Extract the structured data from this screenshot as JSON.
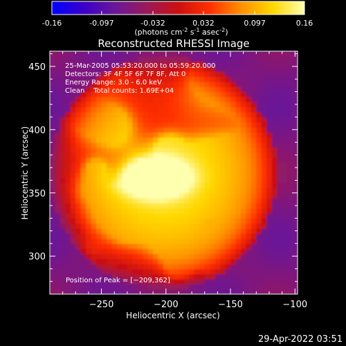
{
  "colorbar": {
    "ticks": [
      "-0.16",
      "-0.097",
      "-0.032",
      "0.032",
      "0.097",
      "0.16"
    ],
    "tick_values": [
      -0.16,
      -0.097,
      -0.032,
      0.032,
      0.097,
      0.16
    ],
    "range": [
      -0.16,
      0.16
    ],
    "units_prefix": "(photons cm",
    "units_exp1": "-2",
    "units_mid": " s",
    "units_exp2": "-1",
    "units_suffix": " asec",
    "units_exp3": "-2",
    "units_close": ")",
    "colormap": [
      "#0000ff",
      "#3a00c8",
      "#6a1898",
      "#9a1a5a",
      "#cc1010",
      "#ff3000",
      "#ff9000",
      "#ffd800",
      "#ffffb0"
    ]
  },
  "chart_data": {
    "type": "heatmap",
    "title": "Reconstructed RHESSI Image",
    "xlabel": "Heliocentric X (arcsec)",
    "ylabel": "Heliocentric Y (arcsec)",
    "xlim": [
      -290,
      -98
    ],
    "ylim": [
      270,
      462
    ],
    "x_ticks": [
      -250,
      -200,
      -150,
      -100
    ],
    "y_ticks": [
      300,
      350,
      400,
      450
    ],
    "x_tick_labels": [
      "−250",
      "−200",
      "−150",
      "−100"
    ],
    "y_tick_labels": [
      "300",
      "350",
      "400",
      "450"
    ],
    "peak": {
      "x": -209,
      "y": 362
    },
    "info_lines": [
      "25-Mar-2005 05:53:20.000 to 05:59:20.000",
      "Detectors: 3F 4F 5F 6F 7F 8F, Att 0",
      "Energy Range: 3.0 - 6.0 keV",
      "Clean    Total counts: 1.69E+04"
    ],
    "peak_label": "Position of Peak = [−209,362]"
  },
  "footer": {
    "date": "29-Apr-2022 03:51"
  }
}
